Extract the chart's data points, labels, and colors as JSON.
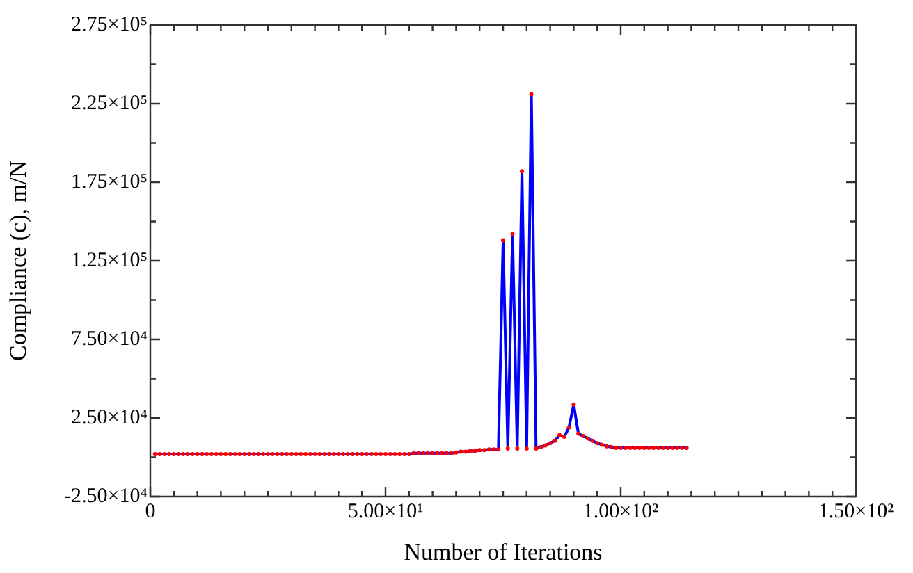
{
  "chart_data": {
    "type": "line",
    "xlabel": "Number of Iterations",
    "ylabel": "Compliance (c), m/N",
    "x": [
      1,
      2,
      3,
      4,
      5,
      6,
      7,
      8,
      9,
      10,
      11,
      12,
      13,
      14,
      15,
      16,
      17,
      18,
      19,
      20,
      21,
      22,
      23,
      24,
      25,
      26,
      27,
      28,
      29,
      30,
      31,
      32,
      33,
      34,
      35,
      36,
      37,
      38,
      39,
      40,
      41,
      42,
      43,
      44,
      45,
      46,
      47,
      48,
      49,
      50,
      51,
      52,
      53,
      54,
      55,
      56,
      57,
      58,
      59,
      60,
      61,
      62,
      63,
      64,
      65,
      66,
      67,
      68,
      69,
      70,
      71,
      72,
      73,
      74,
      75,
      76,
      77,
      78,
      79,
      80,
      81,
      82,
      83,
      84,
      85,
      86,
      87,
      88,
      89,
      90,
      91,
      92,
      93,
      94,
      95,
      96,
      97,
      98,
      99,
      100,
      101,
      102,
      103,
      104,
      105,
      106,
      107,
      108,
      109,
      110,
      111,
      112,
      113,
      114
    ],
    "series": [
      {
        "color": "#0000ff",
        "colors": [
          "#ff0000",
          "#ff0000",
          "#ff0000",
          "#ff0000",
          "#ff0000",
          "#ff0000",
          "#ff0000",
          "#ff0000",
          "#ff0000",
          "#ff0000",
          "#ff0000",
          "#ff0000",
          "#ff0000",
          "#ff0000",
          "#ff0000",
          "#ff0000",
          "#ff0000",
          "#ff0000",
          "#ff0000",
          "#ff0000",
          "#ff0000",
          "#ff0000",
          "#ff0000",
          "#ff0000",
          "#ff0000",
          "#ff0000",
          "#ff0000",
          "#ff0000",
          "#ff0000",
          "#ff0000",
          "#ff0000",
          "#ff0000",
          "#ff0000",
          "#ff0000",
          "#ff0000",
          "#ff0000",
          "#ff0000",
          "#ff0000",
          "#ff0000",
          "#ff0000",
          "#ff0000",
          "#ff0000",
          "#ff0000",
          "#ff0000",
          "#ff0000",
          "#ff0000",
          "#ff0000",
          "#ff0000",
          "#ff0000",
          "#ff0000",
          "#ff0000",
          "#ff0000",
          "#ff0000",
          "#ff0000",
          "#ff0000",
          "#ff0000",
          "#ff0000",
          "#ff0000",
          "#ff0000",
          "#ff0000",
          "#ff0000",
          "#ff0000",
          "#ff0000",
          "#ff0000",
          "#ff0000",
          "#ff0000",
          "#ff0000",
          "#ff0000",
          "#ff0000",
          "#ff0000",
          "#ff0000",
          "#ff0000",
          "#ff0000",
          "#ff0000",
          "#ff0000",
          "#ff0000",
          "#ff0000",
          "#ff0000",
          "#ff0000",
          "#ff0000",
          "#ff0000",
          "#ff0000",
          "#ff0000",
          "#ff0000",
          "#ff0000",
          "#ff0000",
          "#ff0000",
          "#ff0000",
          "#ff0000",
          "#ff0000",
          "#ff0000",
          "#ff0000",
          "#ff0000",
          "#ff0000",
          "#ff0000",
          "#ff0000",
          "#ff0000",
          "#ff0000",
          "#ff0000",
          "#ff0000",
          "#ff0000",
          "#ff0000",
          "#ff0000",
          "#ff0000",
          "#ff0000",
          "#ff0000",
          "#ff0000",
          "#ff0000",
          "#ff0000",
          "#ff0000",
          "#ff0000",
          "#ff0000",
          "#ff0000",
          "#ff0000"
        ],
        "values": [
          2000,
          2000,
          2000,
          2000,
          2000,
          2000,
          2000,
          2000,
          2000,
          2000,
          2000,
          2000,
          2000,
          2000,
          2000,
          2000,
          2000,
          2000,
          2000,
          2000,
          2000,
          2000,
          2000,
          2000,
          2000,
          2000,
          2000,
          2000,
          2000,
          2000,
          2000,
          2000,
          2000,
          2000,
          2000,
          2000,
          2000,
          2000,
          2000,
          2000,
          2000,
          2000,
          2000,
          2000,
          2000,
          2000,
          2000,
          2000,
          2000,
          2000,
          2000,
          2000,
          2000,
          2000,
          2000,
          2500,
          2500,
          2500,
          2500,
          2500,
          2500,
          2500,
          2500,
          2500,
          3000,
          3500,
          3500,
          4000,
          4000,
          4500,
          4500,
          5000,
          5000,
          5000,
          138000,
          5500,
          142000,
          5500,
          182000,
          5500,
          231000,
          5500,
          6500,
          7500,
          9000,
          10500,
          14000,
          13000,
          19000,
          33500,
          15000,
          13500,
          12000,
          10500,
          9000,
          8000,
          7000,
          6500,
          6000,
          6000,
          6000,
          6000,
          6000,
          6000,
          6000,
          6000,
          6000,
          6000,
          6000,
          6000,
          6000,
          6000,
          6000,
          6000
        ]
      }
    ],
    "xlim": [
      0,
      150
    ],
    "xticks": [
      0,
      {
        "value": 5,
        "label": null
      },
      {
        "value": 10,
        "label": null
      },
      {
        "value": 15,
        "label": null
      },
      {
        "value": 20,
        "label": null
      },
      {
        "value": 25,
        "label": null
      },
      {
        "value": 30,
        "label": null
      },
      {
        "value": 35,
        "label": null
      },
      {
        "value": 40,
        "label": null
      },
      {
        "value": 45,
        "label": null
      },
      {
        "value": 50,
        "label": "5.00×10¹"
      },
      {
        "value": 55,
        "label": null
      },
      {
        "value": 60,
        "label": null
      },
      {
        "value": 65,
        "label": null
      },
      {
        "value": 70,
        "label": null
      },
      {
        "value": 75,
        "label": null
      },
      {
        "value": 80,
        "label": null
      },
      {
        "value": 85,
        "label": null
      },
      {
        "value": 90,
        "label": null
      },
      {
        "value": 95,
        "label": null
      },
      {
        "value": 100,
        "label": "1.00×10²"
      },
      {
        "value": 105,
        "label": null
      },
      {
        "value": 110,
        "label": null
      },
      {
        "value": 115,
        "label": null
      },
      {
        "value": 120,
        "label": null
      },
      {
        "value": 125,
        "label": null
      },
      {
        "value": 130,
        "label": null
      },
      {
        "value": 135,
        "label": null
      },
      {
        "value": 140,
        "label": null
      },
      {
        "value": 145,
        "label": null
      },
      {
        "value": 150,
        "label": "1.50×10²"
      }
    ],
    "ylim": [
      -25000,
      275000
    ],
    "yticks": [
      {
        "value": -25000,
        "label": "-2.50×10⁴"
      },
      {
        "value": 0,
        "label": null
      },
      {
        "value": 25000,
        "label": "2.50×10⁴"
      },
      {
        "value": 50000,
        "label": null
      },
      {
        "value": 75000,
        "label": "7.50×10⁴"
      },
      {
        "value": 100000,
        "label": null
      },
      {
        "value": 125000,
        "label": "1.25×10⁵"
      },
      {
        "value": 150000,
        "label": null
      },
      {
        "value": 175000,
        "label": "1.75×10⁵"
      },
      {
        "value": 200000,
        "label": null
      },
      {
        "value": 225000,
        "label": "2.25×10⁵"
      },
      {
        "value": 250000,
        "label": null
      },
      {
        "value": 275000,
        "label": "2.75×10⁵"
      }
    ],
    "grid": false,
    "legend": false,
    "marker": "circle",
    "line_style": "solid"
  }
}
